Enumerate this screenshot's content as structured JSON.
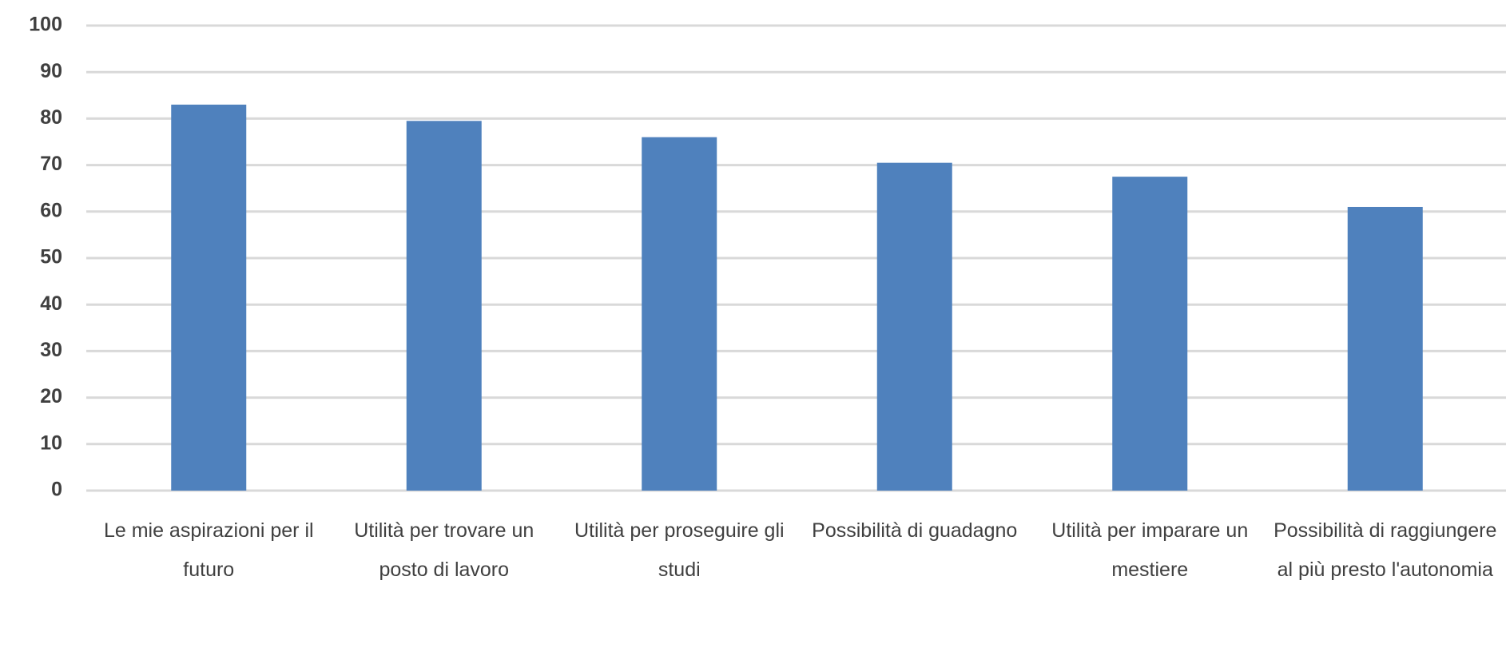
{
  "chart_data": {
    "type": "bar",
    "categories": [
      "Le mie aspirazioni per il futuro",
      "Utilità per trovare un posto di lavoro",
      "Utilità per proseguire gli studi",
      "Possibilità di guadagno",
      "Utilità per imparare un mestiere",
      "Possibilità di raggiungere al più presto l'autonomia"
    ],
    "values": [
      83,
      79.5,
      76,
      70.5,
      67.5,
      61
    ],
    "color": "#4f81bd",
    "ylim": [
      0,
      100
    ],
    "yticks": [
      0,
      10,
      20,
      30,
      40,
      50,
      60,
      70,
      80,
      90,
      100
    ],
    "grid": true
  }
}
